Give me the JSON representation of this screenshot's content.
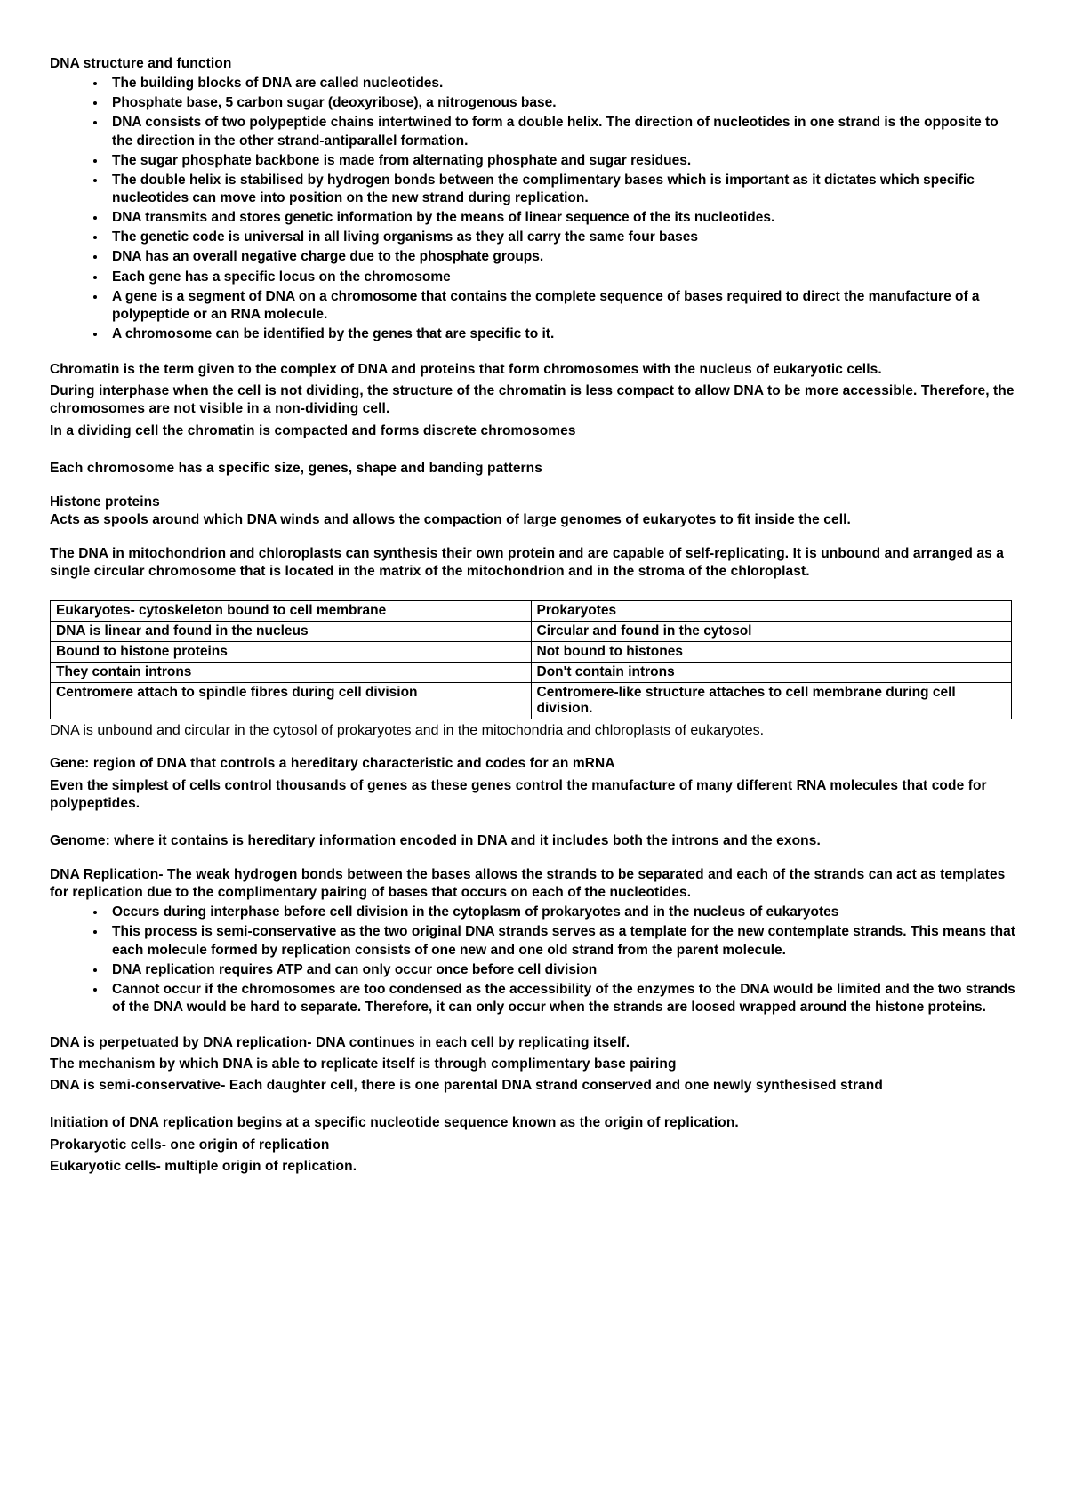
{
  "title": "DNA structure and function",
  "bullets1": [
    "The building blocks of DNA are called nucleotides.",
    "Phosphate base, 5 carbon sugar (deoxyribose), a nitrogenous base.",
    "DNA consists of two polypeptide chains intertwined to form a double helix. The direction of nucleotides in one strand is the opposite to the direction in the other strand-antiparallel formation.",
    "The sugar phosphate backbone is made from alternating phosphate and sugar residues.",
    "The double helix is stabilised by hydrogen bonds between the complimentary bases which is important as it dictates which specific nucleotides can move into position on the new strand during replication.",
    "DNA transmits and stores genetic information by the means of linear sequence of the its nucleotides.",
    "The genetic code is universal in all living organisms as they all carry the same four bases",
    "DNA has an overall negative charge due to the phosphate groups.",
    "Each gene has a specific locus on the chromosome",
    "A gene is a segment of DNA on a chromosome that contains the complete sequence of bases required to direct the manufacture of a polypeptide or an RNA molecule.",
    "A chromosome can be identified by the genes that are specific to it."
  ],
  "chromatin_block": [
    "Chromatin is the term given to the complex of DNA and proteins that form chromosomes with the nucleus of eukaryotic cells.",
    "During interphase when the cell is not dividing, the structure of the chromatin is less compact to allow DNA to be more accessible.  Therefore, the chromosomes are not visible in a non-dividing cell.",
    "In a dividing cell the chromatin is compacted and forms discrete chromosomes"
  ],
  "chrom_line": "Each chromosome has a specific size, genes, shape and banding patterns",
  "histone_heading": "Histone proteins",
  "histone_body": "Acts as spools around which DNA winds and allows the compaction of large genomes of eukaryotes to fit inside the cell.",
  "mito_line": "The DNA in mitochondrion and chloroplasts can synthesis their own protein and are capable of self-replicating. It is unbound and arranged as a single circular chromosome that is located in the matrix of the mitochondrion and in the stroma of the chloroplast.",
  "table": {
    "rows": [
      [
        "Eukaryotes- cytoskeleton bound to cell membrane",
        "Prokaryotes"
      ],
      [
        "DNA is linear and found in the nucleus",
        "Circular and found in the cytosol"
      ],
      [
        "Bound to histone proteins",
        "Not bound to histones"
      ],
      [
        "They contain introns",
        "Don't contain introns"
      ],
      [
        "Centromere attach to spindle fibres during cell division",
        "Centromere-like structure attaches to cell membrane during cell division."
      ]
    ]
  },
  "after_table": "DNA is unbound and circular in the cytosol of prokaryotes and in the mitochondria and chloroplasts of eukaryotes.",
  "gene_lines": [
    "Gene: region of DNA that controls a hereditary characteristic and codes for an mRNA",
    "Even the simplest of cells control thousands of genes as these genes control the manufacture of many different RNA molecules that code for polypeptides."
  ],
  "genome_line": "Genome: where it contains is hereditary information encoded in DNA and it includes both the introns and the exons.",
  "repl_intro": "DNA Replication- The weak hydrogen bonds between the bases allows the strands to be separated and each of the strands can act as templates for replication due to the complimentary pairing of bases that occurs on each of the nucleotides.",
  "bullets2": [
    "Occurs during interphase before cell division in the cytoplasm of prokaryotes and in the nucleus of eukaryotes",
    "This process is semi-conservative as the two original DNA strands serves as a template for the new contemplate strands. This means that each molecule formed by replication consists of one new and one old strand from the parent molecule.",
    "DNA replication requires ATP and can only occur once before cell division",
    "Cannot occur if the chromosomes are too condensed as the accessibility of the enzymes to the DNA would be limited and the two strands of the DNA would be hard to separate. Therefore, it can only occur when the strands are loosed wrapped around the histone proteins."
  ],
  "perp_lines": [
    "DNA is perpetuated by DNA replication- DNA continues in each cell by replicating itself.",
    "The mechanism by which DNA is able to replicate itself is through complimentary base pairing",
    "DNA is semi-conservative- Each daughter cell, there is one parental DNA strand conserved and one newly synthesised strand"
  ],
  "init_lines": [
    "Initiation of DNA replication begins at a specific nucleotide sequence known as the origin of replication.",
    "Prokaryotic cells- one origin of replication",
    "Eukaryotic cells- multiple origin of replication."
  ]
}
